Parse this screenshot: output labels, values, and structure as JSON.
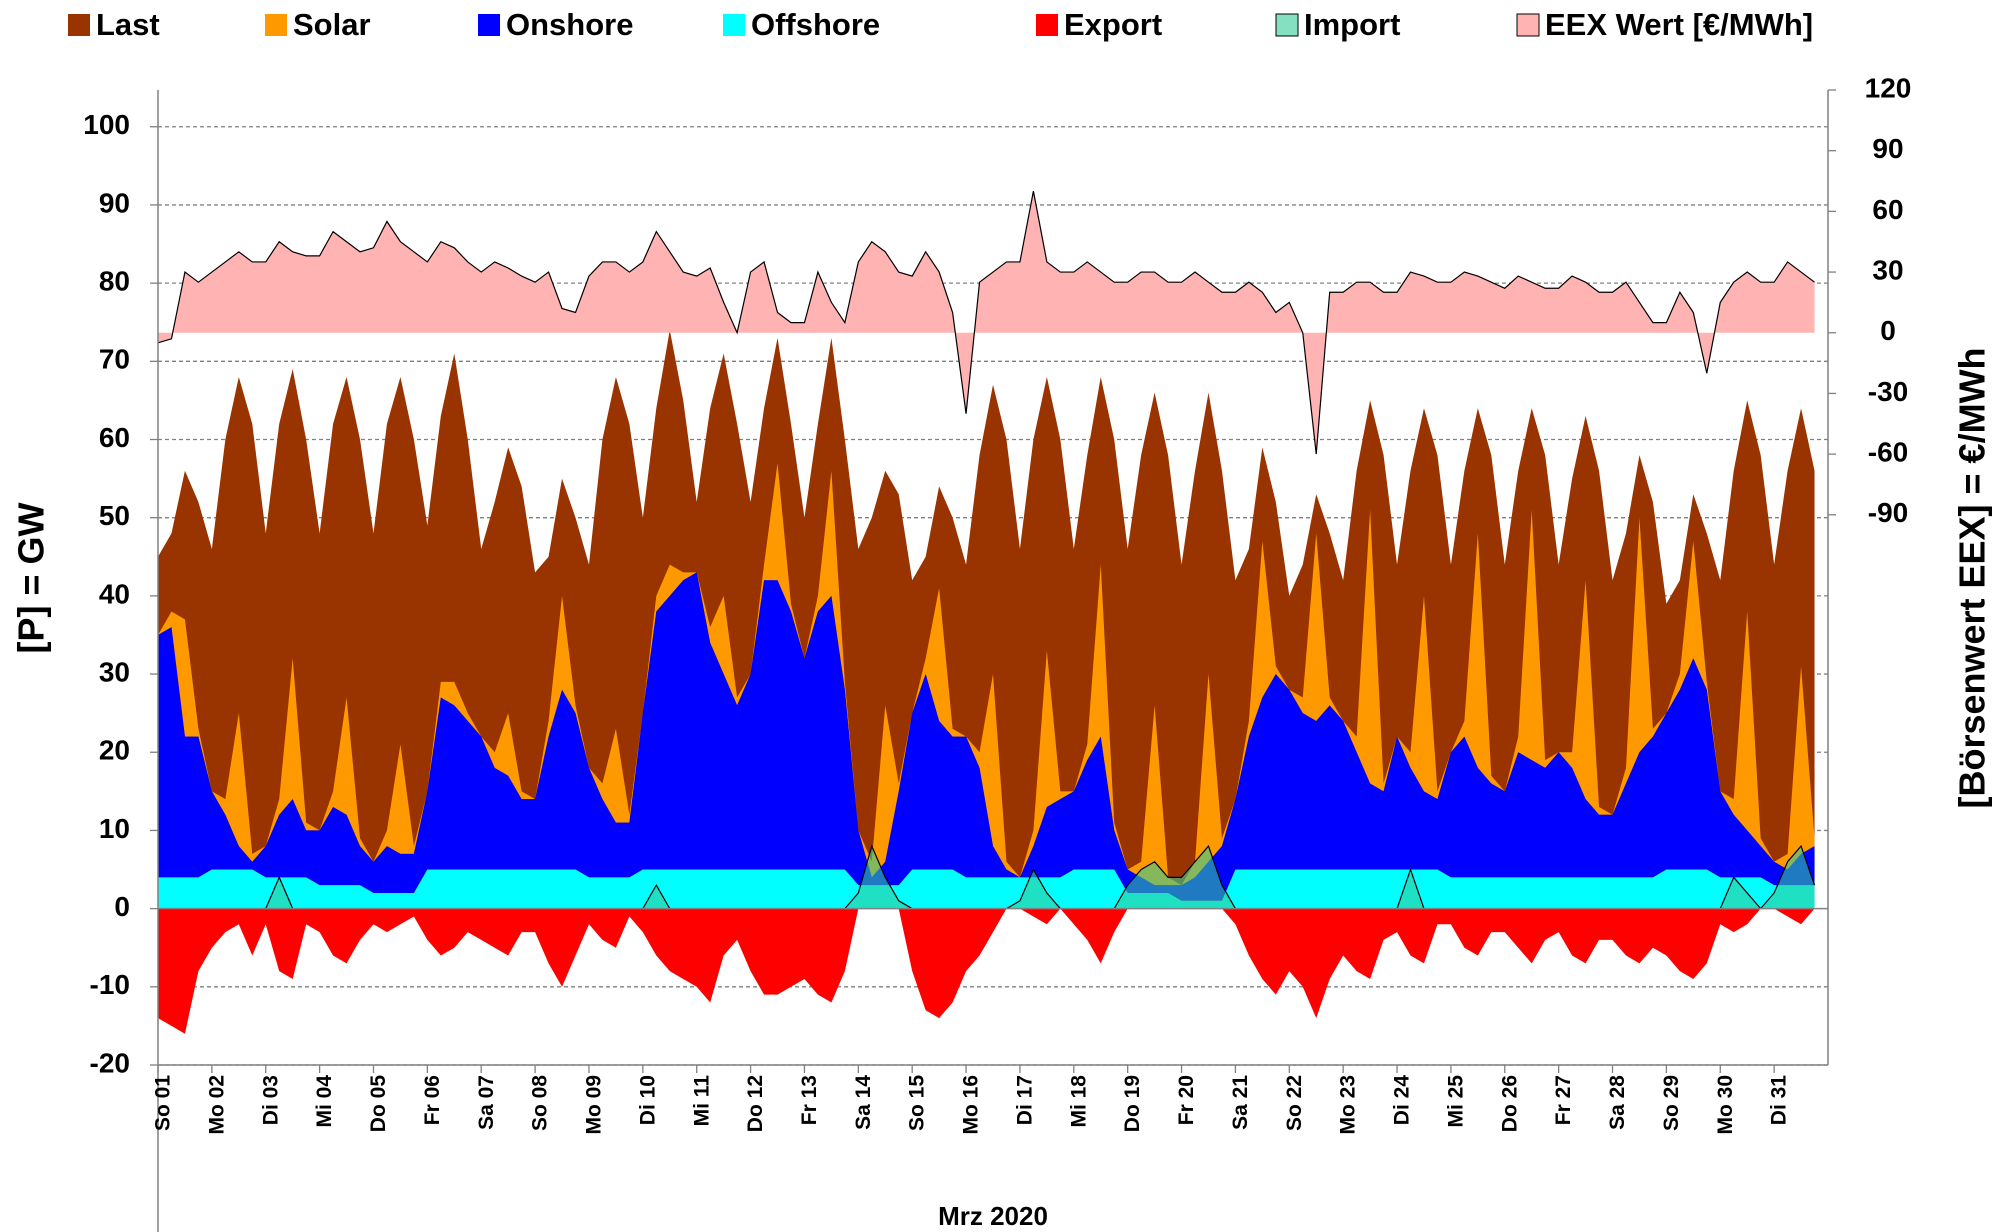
{
  "chart_data": {
    "type": "area",
    "ylabel": "[P]  =  GW",
    "y2label": "[Börsenwert  EEX]  =  €/MWh",
    "xlabel": "Mrz 2020",
    "xlim": [
      0,
      31
    ],
    "xticks": [
      {
        "value": 0,
        "label": "So 01"
      },
      {
        "value": 1,
        "label": "Mo 02"
      },
      {
        "value": 2,
        "label": "Di 03"
      },
      {
        "value": 3,
        "label": "Mi 04"
      },
      {
        "value": 4,
        "label": "Do 05"
      },
      {
        "value": 5,
        "label": "Fr 06"
      },
      {
        "value": 6,
        "label": "Sa 07"
      },
      {
        "value": 7,
        "label": "So 08"
      },
      {
        "value": 8,
        "label": "Mo 09"
      },
      {
        "value": 9,
        "label": "Di 10"
      },
      {
        "value": 10,
        "label": "Mi 11"
      },
      {
        "value": 11,
        "label": "Do 12"
      },
      {
        "value": 12,
        "label": "Fr 13"
      },
      {
        "value": 13,
        "label": "Sa 14"
      },
      {
        "value": 14,
        "label": "So 15"
      },
      {
        "value": 15,
        "label": "Mo 16"
      },
      {
        "value": 16,
        "label": "Di 17"
      },
      {
        "value": 17,
        "label": "Mi 18"
      },
      {
        "value": 18,
        "label": "Do 19"
      },
      {
        "value": 19,
        "label": "Fr 20"
      },
      {
        "value": 20,
        "label": "Sa 21"
      },
      {
        "value": 21,
        "label": "So 22"
      },
      {
        "value": 22,
        "label": "Mo 23"
      },
      {
        "value": 23,
        "label": "Di 24"
      },
      {
        "value": 24,
        "label": "Mi 25"
      },
      {
        "value": 25,
        "label": "Do 26"
      },
      {
        "value": 26,
        "label": "Fr 27"
      },
      {
        "value": 27,
        "label": "Sa 28"
      },
      {
        "value": 28,
        "label": "So 29"
      },
      {
        "value": 29,
        "label": "Mo 30"
      },
      {
        "value": 30,
        "label": "Di 31"
      }
    ],
    "ylim": [
      -20,
      104.7
    ],
    "yticks": [
      -20,
      -10,
      0,
      10,
      20,
      30,
      40,
      50,
      60,
      70,
      80,
      90,
      100
    ],
    "y2lim": [
      -362,
      120
    ],
    "y2ticks": [
      -90,
      -60,
      -30,
      0,
      30,
      60,
      90,
      120
    ],
    "negative_tick_color": "#ff0000",
    "grid": true,
    "x": [
      0,
      0.25,
      0.5,
      0.75,
      1,
      1.25,
      1.5,
      1.75,
      2,
      2.25,
      2.5,
      2.75,
      3,
      3.25,
      3.5,
      3.75,
      4,
      4.25,
      4.5,
      4.75,
      5,
      5.25,
      5.5,
      5.75,
      6,
      6.25,
      6.5,
      6.75,
      7,
      7.25,
      7.5,
      7.75,
      8,
      8.25,
      8.5,
      8.75,
      9,
      9.25,
      9.5,
      9.75,
      10,
      10.25,
      10.5,
      10.75,
      11,
      11.25,
      11.5,
      11.75,
      12,
      12.25,
      12.5,
      12.75,
      13,
      13.25,
      13.5,
      13.75,
      14,
      14.25,
      14.5,
      14.75,
      15,
      15.25,
      15.5,
      15.75,
      16,
      16.25,
      16.5,
      16.75,
      17,
      17.25,
      17.5,
      17.75,
      18,
      18.25,
      18.5,
      18.75,
      19,
      19.25,
      19.5,
      19.75,
      20,
      20.25,
      20.5,
      20.75,
      21,
      21.25,
      21.5,
      21.75,
      22,
      22.25,
      22.5,
      22.75,
      23,
      23.25,
      23.5,
      23.75,
      24,
      24.25,
      24.5,
      24.75,
      25,
      25.25,
      25.5,
      25.75,
      26,
      26.25,
      26.5,
      26.75,
      27,
      27.25,
      27.5,
      27.75,
      28,
      28.25,
      28.5,
      28.75,
      29,
      29.25,
      29.5,
      29.75,
      30,
      30.25,
      30.5,
      30.75
    ],
    "series": [
      {
        "name": "Last",
        "color": "#993300",
        "values": [
          45,
          48,
          56,
          52,
          46,
          60,
          68,
          62,
          48,
          62,
          69,
          60,
          48,
          62,
          68,
          60,
          48,
          62,
          68,
          60,
          49,
          63,
          71,
          60,
          46,
          52,
          59,
          54,
          43,
          45,
          55,
          50,
          44,
          60,
          68,
          62,
          50,
          64,
          74,
          65,
          52,
          64,
          71,
          62,
          52,
          64,
          73,
          62,
          50,
          62,
          73,
          60,
          46,
          50,
          56,
          53,
          42,
          45,
          54,
          50,
          44,
          58,
          67,
          60,
          46,
          60,
          68,
          60,
          46,
          58,
          68,
          60,
          46,
          58,
          66,
          58,
          44,
          56,
          66,
          56,
          42,
          46,
          59,
          52,
          40,
          44,
          53,
          48,
          42,
          56,
          65,
          58,
          44,
          56,
          64,
          58,
          44,
          56,
          64,
          58,
          44,
          56,
          64,
          58,
          44,
          55,
          63,
          56,
          42,
          48,
          58,
          52,
          39,
          42,
          53,
          48,
          42,
          56,
          65,
          58,
          44,
          56,
          64,
          56
        ]
      },
      {
        "name": "Solar",
        "color": "#ff9900",
        "stacked": true,
        "values": [
          0,
          2,
          15,
          1,
          0,
          2,
          17,
          1,
          0,
          2,
          18,
          1,
          0,
          2,
          15,
          1,
          0,
          2,
          14,
          1,
          0,
          2,
          3,
          1,
          0,
          2,
          8,
          1,
          0,
          2,
          12,
          1,
          0,
          2,
          12,
          1,
          0,
          2,
          4,
          1,
          0,
          2,
          10,
          1,
          0,
          2,
          15,
          1,
          0,
          2,
          16,
          1,
          0,
          2,
          20,
          1,
          0,
          2,
          17,
          1,
          0,
          2,
          22,
          1,
          0,
          2,
          20,
          1,
          0,
          2,
          22,
          1,
          0,
          2,
          23,
          1,
          0,
          2,
          24,
          1,
          0,
          2,
          20,
          1,
          0,
          2,
          24,
          1,
          0,
          2,
          35,
          1,
          0,
          2,
          25,
          1,
          0,
          2,
          30,
          1,
          0,
          2,
          32,
          1,
          0,
          2,
          28,
          1,
          0,
          2,
          30,
          1,
          0,
          2,
          15,
          1,
          0,
          2,
          28,
          1,
          0,
          2,
          24,
          1
        ]
      },
      {
        "name": "Onshore",
        "color": "#0000ff",
        "stacked": true,
        "values": [
          31,
          32,
          18,
          18,
          10,
          7,
          3,
          1,
          4,
          8,
          10,
          6,
          7,
          10,
          9,
          5,
          4,
          6,
          5,
          5,
          10,
          22,
          21,
          19,
          17,
          13,
          12,
          9,
          9,
          17,
          23,
          20,
          14,
          10,
          7,
          7,
          20,
          33,
          35,
          37,
          38,
          29,
          25,
          21,
          25,
          37,
          37,
          33,
          27,
          33,
          35,
          23,
          7,
          1,
          3,
          12,
          20,
          25,
          19,
          17,
          18,
          14,
          4,
          1,
          0,
          4,
          9,
          10,
          10,
          14,
          17,
          5,
          3,
          2,
          1,
          1,
          2,
          3,
          5,
          7,
          9,
          17,
          22,
          25,
          23,
          20,
          19,
          21,
          19,
          15,
          11,
          10,
          17,
          13,
          10,
          9,
          16,
          18,
          14,
          12,
          11,
          16,
          15,
          14,
          16,
          14,
          10,
          8,
          8,
          12,
          16,
          18,
          20,
          23,
          27,
          23,
          11,
          8,
          6,
          4,
          3,
          2,
          4,
          5
        ]
      },
      {
        "name": "Offshore",
        "color": "#00ffff",
        "stacked": true,
        "values": [
          4,
          4,
          4,
          4,
          5,
          5,
          5,
          5,
          4,
          4,
          4,
          4,
          3,
          3,
          3,
          3,
          2,
          2,
          2,
          2,
          5,
          5,
          5,
          5,
          5,
          5,
          5,
          5,
          5,
          5,
          5,
          5,
          4,
          4,
          4,
          4,
          5,
          5,
          5,
          5,
          5,
          5,
          5,
          5,
          5,
          5,
          5,
          5,
          5,
          5,
          5,
          5,
          3,
          3,
          3,
          3,
          5,
          5,
          5,
          5,
          4,
          4,
          4,
          4,
          4,
          4,
          4,
          4,
          5,
          5,
          5,
          5,
          2,
          2,
          2,
          2,
          1,
          1,
          1,
          1,
          5,
          5,
          5,
          5,
          5,
          5,
          5,
          5,
          5,
          5,
          5,
          5,
          5,
          5,
          5,
          5,
          4,
          4,
          4,
          4,
          4,
          4,
          4,
          4,
          4,
          4,
          4,
          4,
          4,
          4,
          4,
          4,
          5,
          5,
          5,
          5,
          4,
          4,
          4,
          4,
          3,
          3,
          3,
          3
        ]
      },
      {
        "name": "Export",
        "color": "#ff0000",
        "values": [
          -14,
          -15,
          -16,
          -8,
          -5,
          -3,
          -2,
          -6,
          -2,
          -8,
          -9,
          -2,
          -3,
          -6,
          -7,
          -4,
          -2,
          -3,
          -2,
          -1,
          -4,
          -6,
          -5,
          -3,
          -4,
          -5,
          -6,
          -3,
          -3,
          -7,
          -10,
          -6,
          -2,
          -4,
          -5,
          -1,
          -3,
          -6,
          -8,
          -9,
          -10,
          -12,
          -6,
          -4,
          -8,
          -11,
          -11,
          -10,
          -9,
          -11,
          -12,
          -8,
          0,
          0,
          0,
          0,
          -8,
          -13,
          -14,
          -12,
          -8,
          -6,
          -3,
          0,
          0,
          -1,
          -2,
          0,
          -2,
          -4,
          -7,
          -3,
          0,
          0,
          0,
          0,
          0,
          0,
          0,
          0,
          -2,
          -6,
          -9,
          -11,
          -8,
          -10,
          -14,
          -9,
          -6,
          -8,
          -9,
          -4,
          -3,
          -6,
          -7,
          -2,
          -2,
          -5,
          -6,
          -3,
          -3,
          -5,
          -7,
          -4,
          -3,
          -6,
          -7,
          -4,
          -4,
          -6,
          -7,
          -5,
          -6,
          -8,
          -9,
          -7,
          -2,
          -3,
          -2,
          0,
          0,
          -1,
          -2,
          0
        ]
      },
      {
        "name": "Import",
        "color": "#33cc99",
        "edge_color": "#000000",
        "opacity": 0.6,
        "values": [
          0,
          0,
          0,
          0,
          0,
          0,
          0,
          0,
          0,
          4,
          0,
          0,
          0,
          0,
          0,
          0,
          0,
          0,
          0,
          0,
          0,
          0,
          0,
          0,
          0,
          0,
          0,
          0,
          0,
          0,
          0,
          0,
          0,
          0,
          0,
          0,
          0,
          3,
          0,
          0,
          0,
          0,
          0,
          0,
          0,
          0,
          0,
          0,
          0,
          0,
          0,
          0,
          2,
          8,
          4,
          1,
          0,
          0,
          0,
          0,
          0,
          0,
          0,
          0,
          1,
          5,
          2,
          0,
          0,
          0,
          0,
          0,
          3,
          5,
          6,
          4,
          4,
          6,
          8,
          3,
          0,
          0,
          0,
          0,
          0,
          0,
          0,
          0,
          0,
          0,
          0,
          0,
          0,
          5,
          0,
          0,
          0,
          0,
          0,
          0,
          0,
          0,
          0,
          0,
          0,
          0,
          0,
          0,
          0,
          0,
          0,
          0,
          0,
          0,
          0,
          0,
          0,
          4,
          2,
          0,
          2,
          6,
          8,
          3
        ]
      },
      {
        "name": "EEX Wert [€/MWh]",
        "color": "#ffb3b3",
        "edge_color": "#000000",
        "axis": "y2",
        "values": [
          -5,
          -3,
          30,
          25,
          30,
          35,
          40,
          35,
          35,
          45,
          40,
          38,
          38,
          50,
          45,
          40,
          42,
          55,
          45,
          40,
          35,
          45,
          42,
          35,
          30,
          35,
          32,
          28,
          25,
          30,
          12,
          10,
          28,
          35,
          35,
          30,
          35,
          50,
          40,
          30,
          28,
          32,
          15,
          0,
          30,
          35,
          10,
          5,
          5,
          30,
          15,
          5,
          35,
          45,
          40,
          30,
          28,
          40,
          30,
          10,
          -40,
          25,
          30,
          35,
          35,
          70,
          35,
          30,
          30,
          35,
          30,
          25,
          25,
          30,
          30,
          25,
          25,
          30,
          25,
          20,
          20,
          25,
          20,
          10,
          15,
          0,
          -60,
          20,
          20,
          25,
          25,
          20,
          20,
          30,
          28,
          25,
          25,
          30,
          28,
          25,
          22,
          28,
          25,
          22,
          22,
          28,
          25,
          20,
          20,
          25,
          15,
          5,
          5,
          20,
          10,
          -20,
          15,
          25,
          30,
          25,
          25,
          35,
          30,
          25
        ]
      }
    ]
  }
}
